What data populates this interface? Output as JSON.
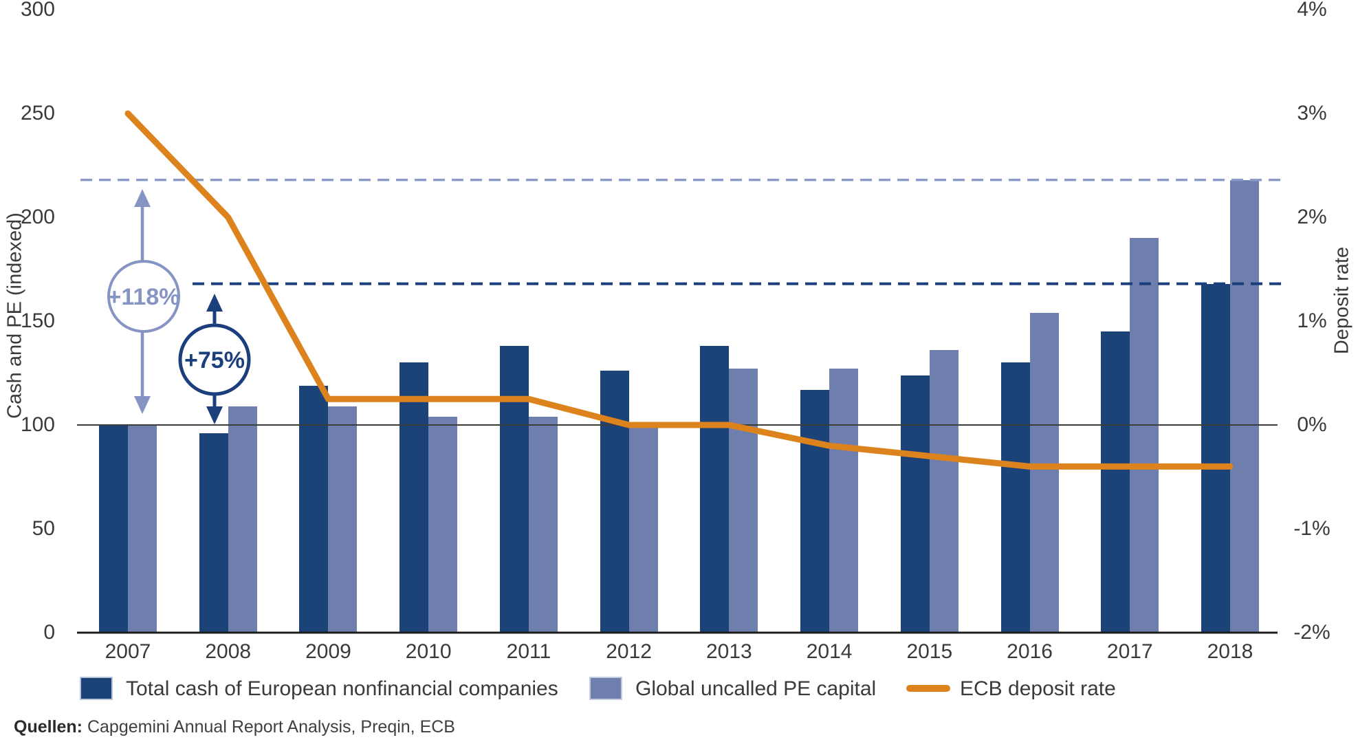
{
  "chart_data": {
    "type": "bar+line",
    "categories": [
      "2007",
      "2008",
      "2009",
      "2010",
      "2011",
      "2012",
      "2013",
      "2014",
      "2015",
      "2016",
      "2017",
      "2018"
    ],
    "series": [
      {
        "name": "Total cash of European nonfinancial companies",
        "type": "bar",
        "axis": "left",
        "color": "#1C4377",
        "values": [
          100,
          96,
          119,
          130,
          138,
          126,
          138,
          117,
          124,
          130,
          145,
          168
        ]
      },
      {
        "name": "Global uncalled PE capital",
        "type": "bar",
        "axis": "left",
        "color": "#6E7FAD",
        "values": [
          100,
          109,
          109,
          104,
          104,
          99,
          127,
          127,
          136,
          154,
          190,
          218
        ]
      },
      {
        "name": "ECB deposit rate",
        "type": "line",
        "axis": "right",
        "color": "#DD831E",
        "unit": "%",
        "values": [
          3.0,
          2.0,
          0.25,
          0.25,
          0.25,
          0.0,
          0.0,
          -0.2,
          -0.3,
          -0.4,
          -0.4,
          -0.4
        ]
      }
    ],
    "left_axis": {
      "title": "Cash and PE (indexed)",
      "ticks": [
        0,
        50,
        100,
        150,
        200,
        250,
        300
      ],
      "range": [
        0,
        300
      ]
    },
    "right_axis": {
      "title": "Deposit rate",
      "ticks": [
        "-2%",
        "-1%",
        "0%",
        "1%",
        "2%",
        "3%",
        "4%"
      ],
      "tick_values": [
        -2,
        -1,
        0,
        1,
        2,
        3,
        4
      ],
      "range": [
        -2,
        4
      ]
    },
    "baseline_value": 100,
    "reference_lines": [
      {
        "value": 218,
        "color": "#8C9AC8",
        "style": "dashed"
      },
      {
        "value": 168,
        "color": "#1B3F7C",
        "style": "dashed"
      }
    ],
    "annotations": [
      {
        "label": "+118%",
        "color": "#8694C4",
        "from_value": 100,
        "to_value": 218
      },
      {
        "label": "+75%",
        "color": "#1B3F7C",
        "from_value": 96,
        "to_value": 168
      }
    ],
    "grid": "off",
    "legend_position": "bottom"
  },
  "legend": {
    "items": [
      {
        "label": "Total cash of European nonfinancial companies",
        "swatch_color": "#1C4377",
        "type": "bar"
      },
      {
        "label": "Global uncalled PE capital",
        "swatch_color": "#6E7FAD",
        "type": "bar"
      },
      {
        "label": "ECB deposit rate",
        "swatch_color": "#DD831E",
        "type": "line"
      }
    ]
  },
  "source": {
    "prefix": "Quellen:",
    "text": "Capgemini Annual Report Analysis, Preqin, ECB"
  }
}
